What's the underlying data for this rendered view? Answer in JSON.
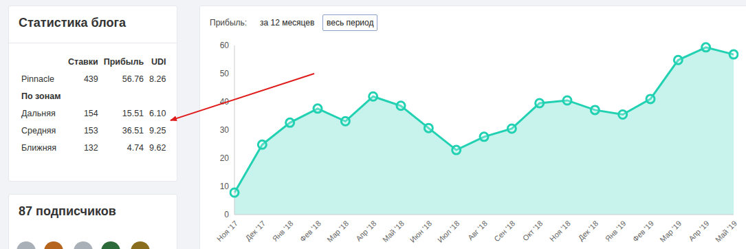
{
  "stats_panel": {
    "title": "Статистика блога",
    "header": [
      "",
      "Ставки",
      "Прибыль",
      "UDI"
    ],
    "rows": [
      [
        "Pinnacle",
        "439",
        "56.76",
        "8.26"
      ]
    ],
    "section": "По зонам",
    "section_rows": [
      [
        "Дальняя",
        "154",
        "15.51",
        "6.10"
      ],
      [
        "Средняя",
        "153",
        "36.51",
        "9.25"
      ],
      [
        "Ближняя",
        "132",
        "4.74",
        "9.62"
      ]
    ]
  },
  "subscribers": {
    "title": "87 подписчиков"
  },
  "period_switch": {
    "label": "Прибыль:",
    "options": [
      "за 12 месяцев",
      "весь период"
    ],
    "selected": "весь период"
  },
  "chart_data": {
    "type": "area",
    "categories": [
      "Ноя '17",
      "Дек '17",
      "Янв '18",
      "Фев '18",
      "Мар '18",
      "Апр '18",
      "Май '18",
      "Июн '18",
      "Июл '18",
      "Авг '18",
      "Сен '18",
      "Окт '18",
      "Ноя '18",
      "Дек '18",
      "Янв '19",
      "Фев '19",
      "Мар '19",
      "Апр '19",
      "Май '19"
    ],
    "values": [
      7.8,
      24.8,
      32.6,
      37.6,
      33.1,
      41.9,
      38.6,
      30.7,
      22.9,
      27.6,
      30.5,
      39.5,
      40.5,
      37.1,
      35.5,
      41.0,
      54.8,
      59.3,
      56.8
    ],
    "color": "#22d1b2",
    "ylim": [
      0,
      60
    ],
    "yticks": [
      0,
      10,
      20,
      30,
      40,
      50,
      60
    ],
    "grid": false,
    "marker": "circle"
  }
}
